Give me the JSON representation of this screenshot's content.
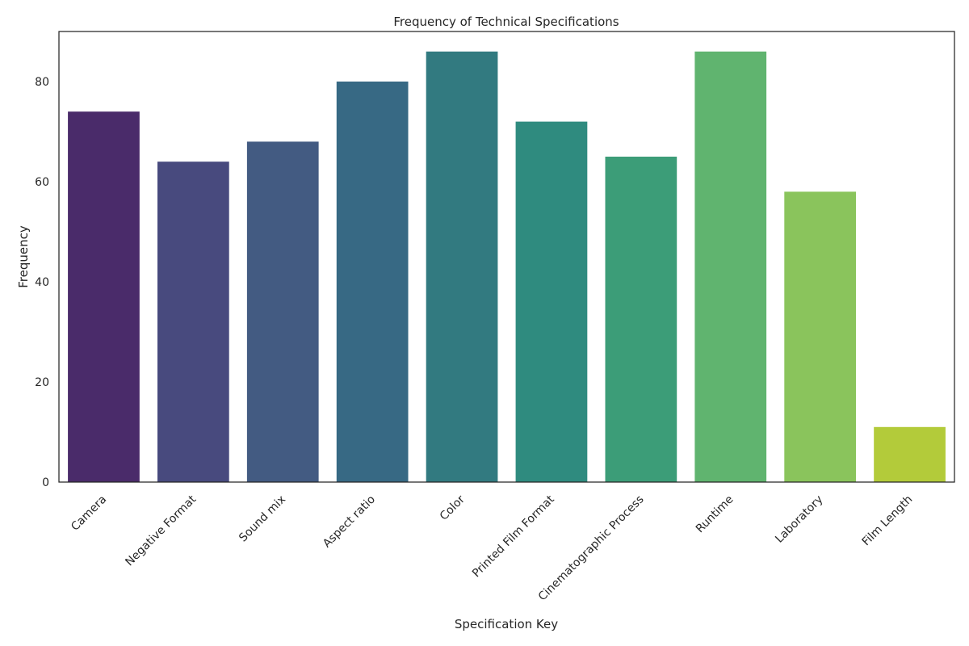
{
  "chart_data": {
    "type": "bar",
    "title": "Frequency of Technical Specifications",
    "xlabel": "Specification Key",
    "ylabel": "Frequency",
    "categories": [
      "Camera",
      "Negative Format",
      "Sound mix",
      "Aspect ratio",
      "Color",
      "Printed Film Format",
      "Cinematographic Process",
      "Runtime",
      "Laboratory",
      "Film Length"
    ],
    "values": [
      74,
      64,
      68,
      80,
      86,
      72,
      65,
      86,
      58,
      11
    ],
    "colors": [
      "#4a2b6a",
      "#484a7e",
      "#435b82",
      "#376984",
      "#327a80",
      "#2f8b7f",
      "#3c9d78",
      "#60b46f",
      "#8ac45c",
      "#b3cb3a"
    ],
    "ylim": [
      0,
      90
    ],
    "yticks": [
      0,
      20,
      40,
      60,
      80
    ],
    "grid": false,
    "legend": "none"
  }
}
